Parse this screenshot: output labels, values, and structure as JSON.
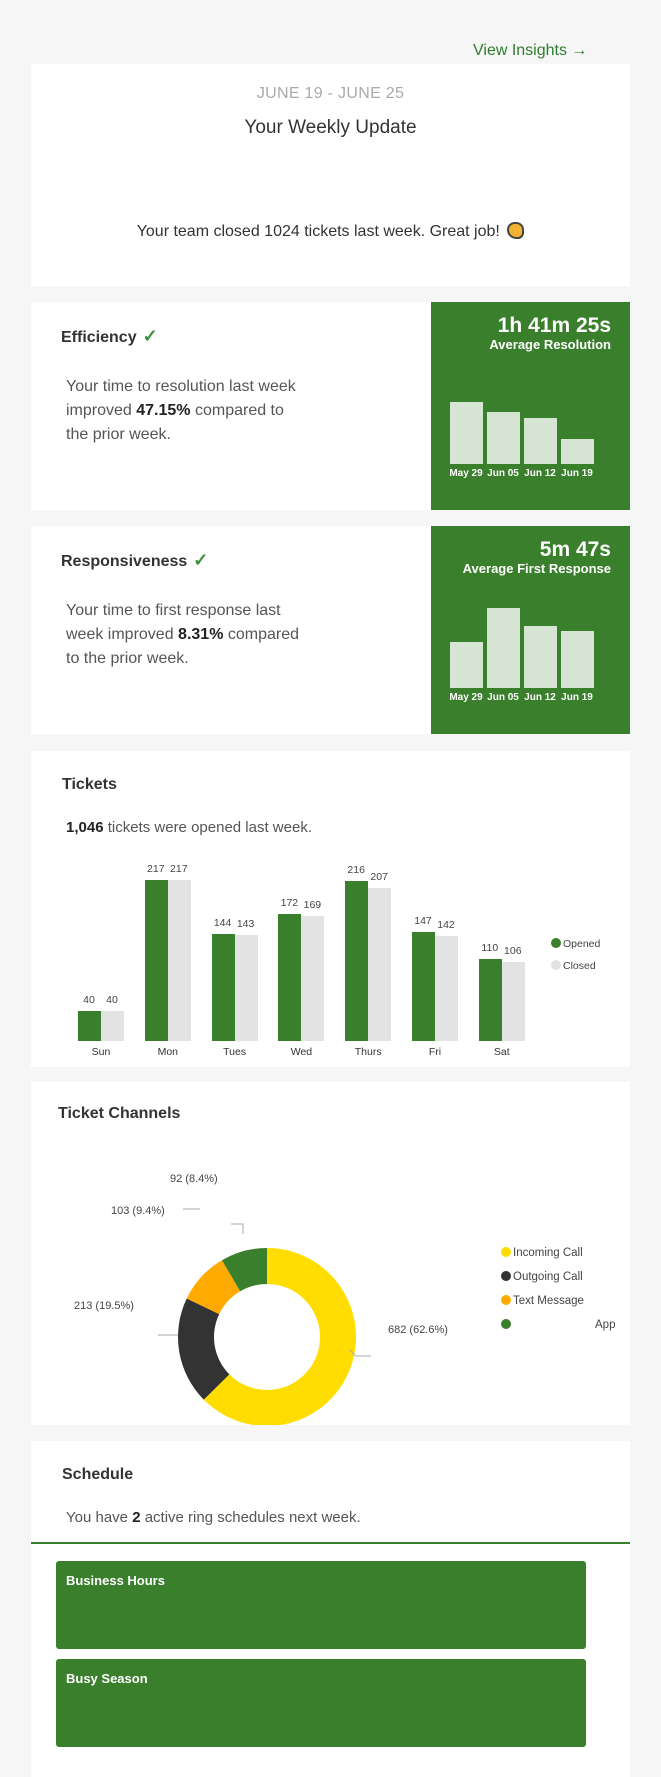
{
  "header": {
    "view_insights": "View Insights →"
  },
  "update": {
    "date_range": "JUNE 19 - JUNE 25",
    "title": "Your Weekly Update",
    "closed_text": "Your team closed 1024 tickets last week. Great job!",
    "clap_icon": "clapping-hands-icon"
  },
  "efficiency": {
    "title": "Efficiency",
    "check": "✓",
    "text_before": "Your time to resolution last week improved ",
    "percent": "47.15%",
    "text_after": " compared to the prior week.",
    "big_time": "1h 41m 25s",
    "subtitle": "Average Resolution",
    "weeks": [
      "May 29",
      "Jun 05",
      "Jun 12",
      "Jun 19"
    ],
    "bar_levels": [
      0.75,
      0.64,
      0.56,
      0.3
    ]
  },
  "responsiveness": {
    "title": "Responsiveness",
    "check": "✓",
    "text_before": "Your time to first response last week improved ",
    "percent": "8.31%",
    "text_after": " compared to the prior week.",
    "big_time": "5m 47s",
    "subtitle": "Average First Response",
    "weeks": [
      "May 29",
      "Jun 05",
      "Jun 12",
      "Jun 19"
    ],
    "bar_levels": [
      0.56,
      0.97,
      0.75,
      0.7
    ]
  },
  "tickets": {
    "title": "Tickets",
    "count": "1,046",
    "text": " tickets were opened last week.",
    "legend": [
      "Opened",
      "Closed"
    ],
    "colors": {
      "opened": "#3a7f2c",
      "closed": "#e3e3e3"
    }
  },
  "chart_data": [
    {
      "type": "bar",
      "categories": [
        "Sun",
        "Mon",
        "Tues",
        "Wed",
        "Thurs",
        "Fri",
        "Sat"
      ],
      "series": [
        {
          "name": "Opened",
          "values": [
            40,
            217,
            144,
            172,
            216,
            147,
            110
          ]
        },
        {
          "name": "Closed",
          "values": [
            40,
            217,
            143,
            169,
            207,
            142,
            106
          ]
        }
      ],
      "title": "",
      "ylim": [
        0,
        220
      ],
      "legend": "right"
    },
    {
      "type": "pie",
      "categories": [
        "Incoming Call",
        "Outgoing Call",
        "Text Message",
        "App"
      ],
      "values": [
        682,
        213,
        103,
        92
      ],
      "labels": [
        "682 (62.6%)",
        "213 (19.5%)",
        "103 (9.4%)",
        "92 (8.4%)"
      ],
      "colors": [
        "#ffdd00",
        "#333333",
        "#ffaa00",
        "#3a7f2c"
      ],
      "donut": true,
      "legend": "right"
    }
  ],
  "channels": {
    "title": "Ticket Channels",
    "legend": [
      "Incoming Call",
      "Outgoing Call",
      "Text Message",
      "App"
    ]
  },
  "schedule": {
    "title": "Schedule",
    "text_before": "You have ",
    "count": "2",
    "text_after": " active ring schedules next week.",
    "items": [
      "Business Hours",
      "Busy Season"
    ],
    "accent": "#3a7f2c"
  }
}
